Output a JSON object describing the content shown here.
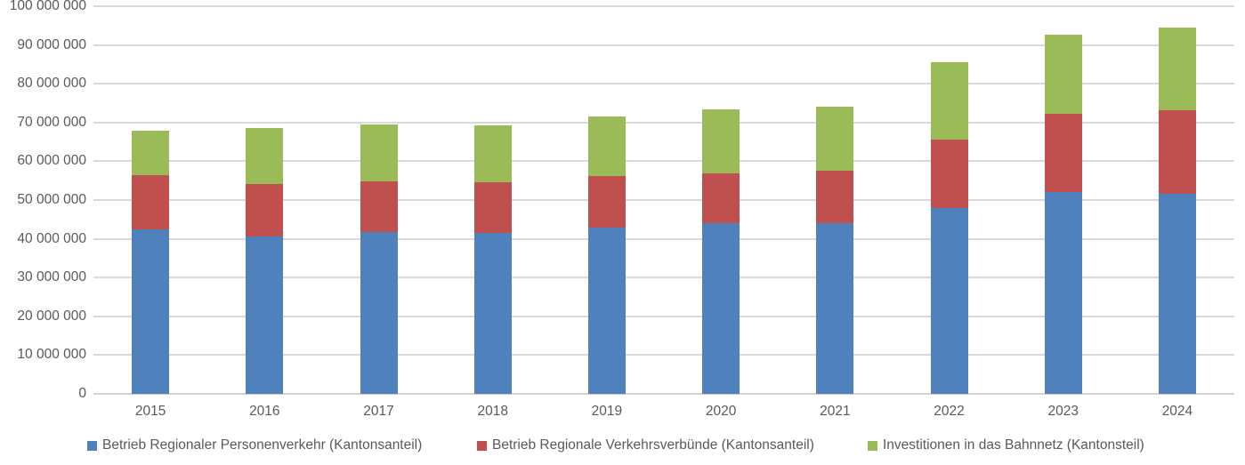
{
  "chart_data": {
    "type": "bar",
    "stacked": true,
    "title": "",
    "xlabel": "",
    "ylabel": "",
    "categories": [
      "2015",
      "2016",
      "2017",
      "2018",
      "2019",
      "2020",
      "2021",
      "2022",
      "2023",
      "2024"
    ],
    "series": [
      {
        "name": "Betrieb Regionaler Personenverkehr (Kantonsanteil)",
        "color": "#4F81BD",
        "values": [
          42500000,
          40500000,
          41700000,
          41500000,
          42800000,
          44000000,
          44000000,
          48000000,
          52000000,
          51700000
        ]
      },
      {
        "name": "Betrieb Regionale Verkehrsverbünde (Kantonsanteil)",
        "color": "#C0504D",
        "values": [
          14000000,
          13700000,
          13200000,
          13000000,
          13400000,
          13000000,
          13500000,
          17700000,
          20200000,
          21400000
        ]
      },
      {
        "name": "Investitionen in das Bahnnetz (Kantonsteil)",
        "color": "#9BBB59",
        "values": [
          11500000,
          14300000,
          14500000,
          14700000,
          15300000,
          16300000,
          16700000,
          19800000,
          20500000,
          21400000
        ]
      }
    ],
    "totals": [
      68000000,
      68500000,
      69400000,
      69200000,
      71500000,
      73300000,
      74200000,
      85500000,
      92700000,
      94500000
    ],
    "ylim": [
      0,
      100000000
    ],
    "ytick_step": 10000000,
    "ytick_labels": [
      "0",
      "10 000 000",
      "20 000 000",
      "30 000 000",
      "40 000 000",
      "50 000 000",
      "60 000 000",
      "70 000 000",
      "80 000 000",
      "90 000 000",
      "100 000 000"
    ],
    "grid": true,
    "legend_position": "bottom"
  },
  "legend_x_offsets": [
    98,
    536,
    975
  ],
  "colors": {
    "background": "#FFFFFF",
    "gridline": "#D9D9D9",
    "axis_line": "#D3D3D3",
    "axis_text": "#595959"
  }
}
